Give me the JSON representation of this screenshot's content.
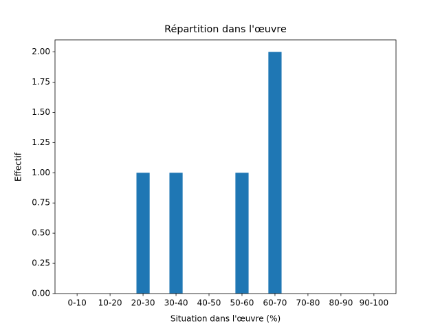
{
  "chart_data": {
    "type": "bar",
    "title": "Répartition dans l'œuvre",
    "x_label": "Situation dans l'œuvre (%)",
    "y_label": "Effectif",
    "categories": [
      "0-10",
      "10-20",
      "20-30",
      "30-40",
      "40-50",
      "50-60",
      "60-70",
      "70-80",
      "80-90",
      "90-100"
    ],
    "values": [
      0,
      0,
      1,
      1,
      0,
      1,
      2,
      0,
      0,
      0
    ],
    "color": "#1f77b4",
    "ylim": [
      0,
      2.1
    ],
    "yticks": [
      {
        "value": 0,
        "label": "0.00"
      },
      {
        "value": 0.25,
        "label": "0.25"
      },
      {
        "value": 0.5,
        "label": "0.50"
      },
      {
        "value": 0.75,
        "label": "0.75"
      },
      {
        "value": 1,
        "label": "1.00"
      },
      {
        "value": 1.25,
        "label": "1.25"
      },
      {
        "value": 1.5,
        "label": "1.50"
      },
      {
        "value": 1.75,
        "label": "1.75"
      },
      {
        "value": 2,
        "label": "2.00"
      }
    ],
    "grid": false
  }
}
